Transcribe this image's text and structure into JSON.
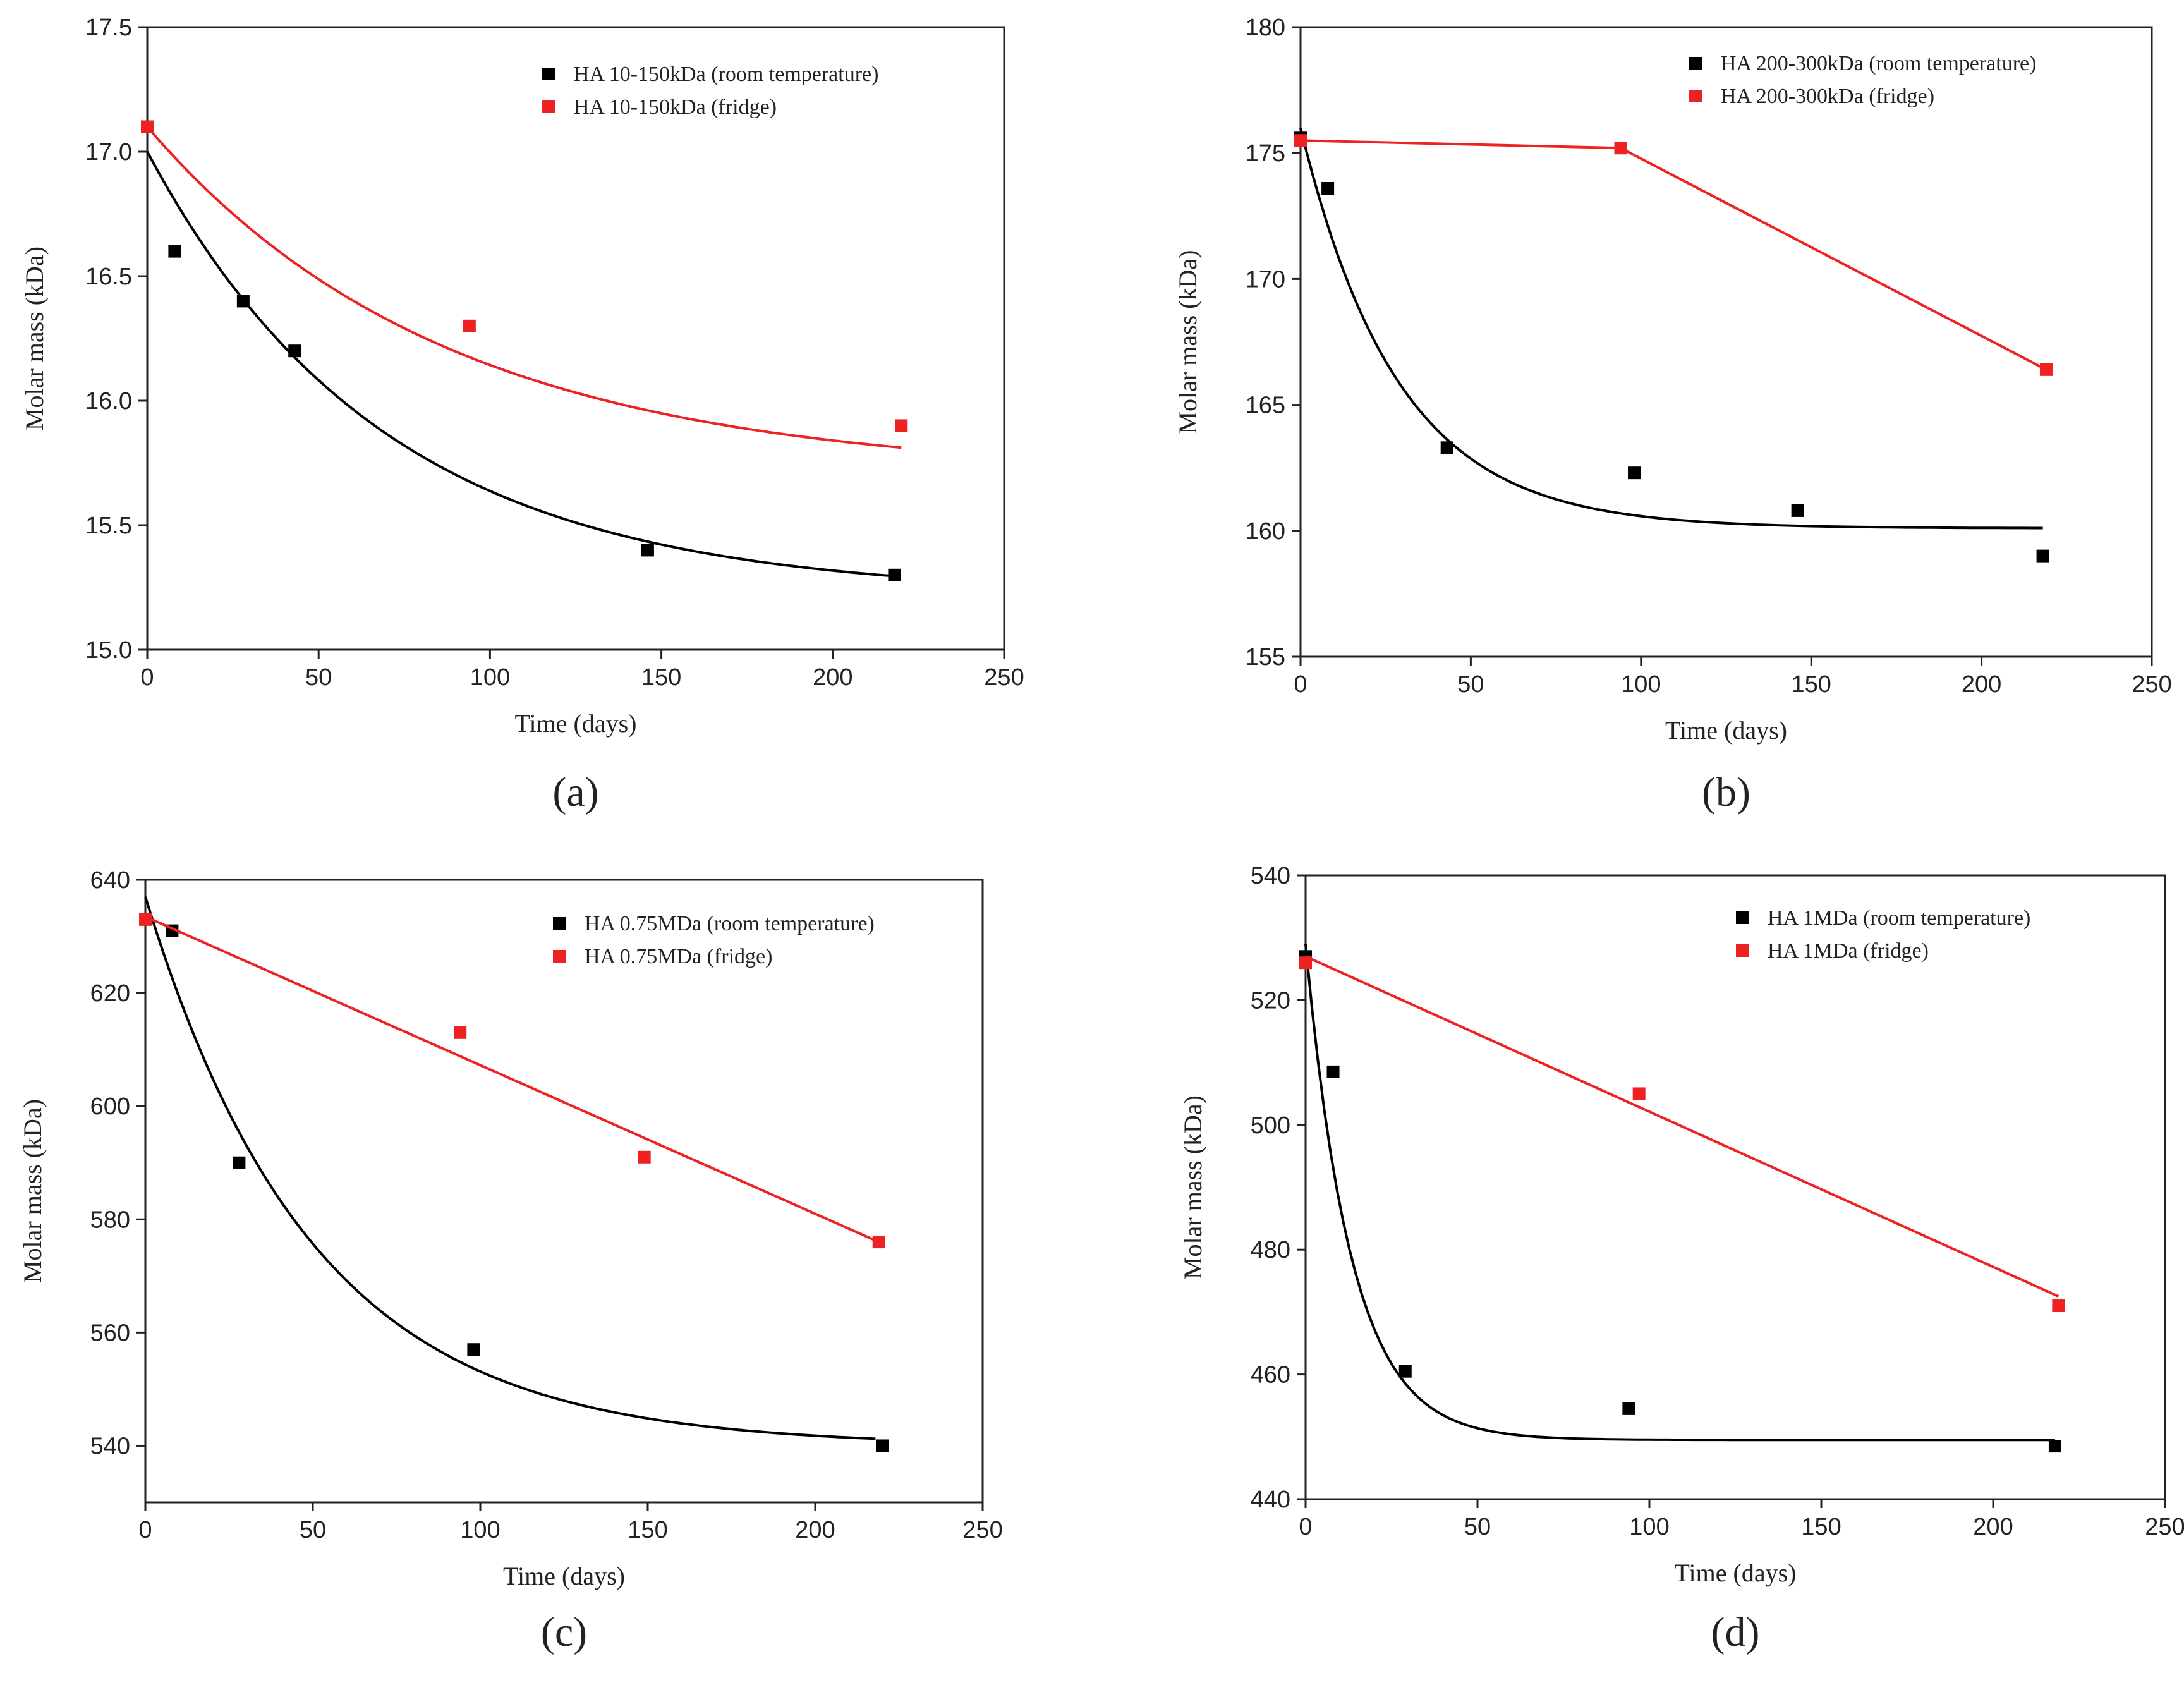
{
  "chart_data": [
    {
      "type": "scatter",
      "panel_label": "(a)",
      "xlabel": "Time (days)",
      "ylabel": "Molar mass (kDa)",
      "xlim": [
        0,
        250
      ],
      "ylim": [
        15.0,
        17.5
      ],
      "xticks": [
        0,
        50,
        100,
        150,
        200,
        250
      ],
      "yticks": [
        15.0,
        15.5,
        16.0,
        16.5,
        17.0,
        17.5
      ],
      "y_decimals": 1,
      "legend_position": "top-right",
      "series": [
        {
          "name": "HA 10-150kDa (room temperature)",
          "color": "#000000",
          "x": [
            0,
            8,
            28,
            43,
            146,
            218
          ],
          "y": [
            17.1,
            16.6,
            16.4,
            16.2,
            15.4,
            15.3
          ],
          "fit": {
            "kind": "exp",
            "a": 17.0,
            "b": 15.22,
            "k": 0.0145,
            "x_end": 218
          }
        },
        {
          "name": "HA 10-150kDa (fridge)",
          "color": "#ee2222",
          "x": [
            0,
            94,
            220
          ],
          "y": [
            17.1,
            16.3,
            15.9
          ],
          "fit": {
            "kind": "exp",
            "a": 17.1,
            "b": 15.7,
            "k": 0.0115,
            "x_end": 220
          }
        }
      ]
    },
    {
      "type": "scatter",
      "panel_label": "(b)",
      "xlabel": "Time (days)",
      "ylabel": "Molar mass (kDa)",
      "xlim": [
        0,
        250
      ],
      "ylim": [
        155,
        180
      ],
      "xticks": [
        0,
        50,
        100,
        150,
        200,
        250
      ],
      "yticks": [
        155,
        160,
        165,
        170,
        175,
        180
      ],
      "y_decimals": 0,
      "legend_position": "top-right",
      "series": [
        {
          "name": "HA 200-300kDa (room temperature)",
          "color": "#000000",
          "x": [
            0,
            8,
            43,
            98,
            146,
            218
          ],
          "y": [
            175.6,
            173.6,
            163.3,
            162.3,
            160.8,
            159.0
          ],
          "fit": {
            "kind": "exp",
            "a": 176.0,
            "b": 160.1,
            "k": 0.035,
            "x_end": 218
          }
        },
        {
          "name": "HA 200-300kDa (fridge)",
          "color": "#ee2222",
          "x": [
            0,
            94,
            219
          ],
          "y": [
            175.5,
            175.2,
            166.4
          ],
          "fit": {
            "kind": "poly",
            "x": [
              0,
              94,
              219
            ],
            "y": [
              175.5,
              175.2,
              166.4
            ]
          }
        }
      ]
    },
    {
      "type": "scatter",
      "panel_label": "(c)",
      "xlabel": "Time (days)",
      "ylabel": "Molar mass (kDa)",
      "xlim": [
        0,
        250
      ],
      "ylim": [
        530,
        640
      ],
      "xticks": [
        0,
        50,
        100,
        150,
        200,
        250
      ],
      "yticks": [
        540,
        560,
        580,
        600,
        620,
        640
      ],
      "y_decimals": 0,
      "legend_position": "top-right",
      "series": [
        {
          "name": "HA 0.75MDa (room temperature)",
          "color": "#000000",
          "x": [
            0,
            8,
            28,
            98,
            220
          ],
          "y": [
            633,
            631,
            590,
            557,
            540
          ],
          "fit": {
            "kind": "exp",
            "a": 637,
            "b": 540,
            "k": 0.02,
            "x_end": 218
          }
        },
        {
          "name": "HA 0.75MDa (fridge)",
          "color": "#ee2222",
          "x": [
            0,
            94,
            149,
            219
          ],
          "y": [
            633,
            613,
            591,
            576
          ],
          "fit": {
            "kind": "line",
            "x0": 0,
            "y0": 633.5,
            "x1": 219,
            "y1": 576
          }
        }
      ]
    },
    {
      "type": "scatter",
      "panel_label": "(d)",
      "xlabel": "Time (days)",
      "ylabel": "Molar mass (kDa)",
      "xlim": [
        0,
        250
      ],
      "ylim": [
        440,
        540
      ],
      "xticks": [
        0,
        50,
        100,
        150,
        200,
        250
      ],
      "yticks": [
        440,
        460,
        480,
        500,
        520,
        540
      ],
      "y_decimals": 0,
      "legend_position": "top-right",
      "series": [
        {
          "name": "HA 1MDa (room temperature)",
          "color": "#000000",
          "x": [
            0,
            8,
            29,
            94,
            218
          ],
          "y": [
            527,
            508.5,
            460.5,
            454.5,
            448.5
          ],
          "fit": {
            "kind": "exp",
            "a": 529,
            "b": 449.5,
            "k": 0.075,
            "x_end": 218
          }
        },
        {
          "name": "HA 1MDa (fridge)",
          "color": "#ee2222",
          "x": [
            0,
            97,
            219
          ],
          "y": [
            526,
            505,
            471
          ],
          "fit": {
            "kind": "line",
            "x0": 0,
            "y0": 527,
            "x1": 219,
            "y1": 472.5
          }
        }
      ]
    }
  ]
}
